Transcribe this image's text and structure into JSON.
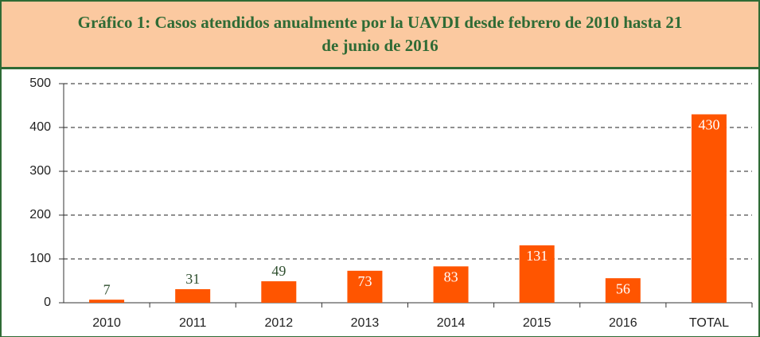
{
  "chart_data": {
    "type": "bar",
    "title": "Gráfico 1: Casos atendidos anualmente por la UAVDI desde febrero de 2010 hasta 21 de junio de 2016",
    "categories": [
      "2010",
      "2011",
      "2012",
      "2013",
      "2014",
      "2015",
      "2016",
      "TOTAL"
    ],
    "values": [
      7,
      31,
      49,
      73,
      83,
      131,
      56,
      430
    ],
    "color": "#ff5500",
    "ylim": [
      0,
      500
    ],
    "yticks": [
      0,
      100,
      200,
      300,
      400,
      500
    ],
    "grid": true
  }
}
